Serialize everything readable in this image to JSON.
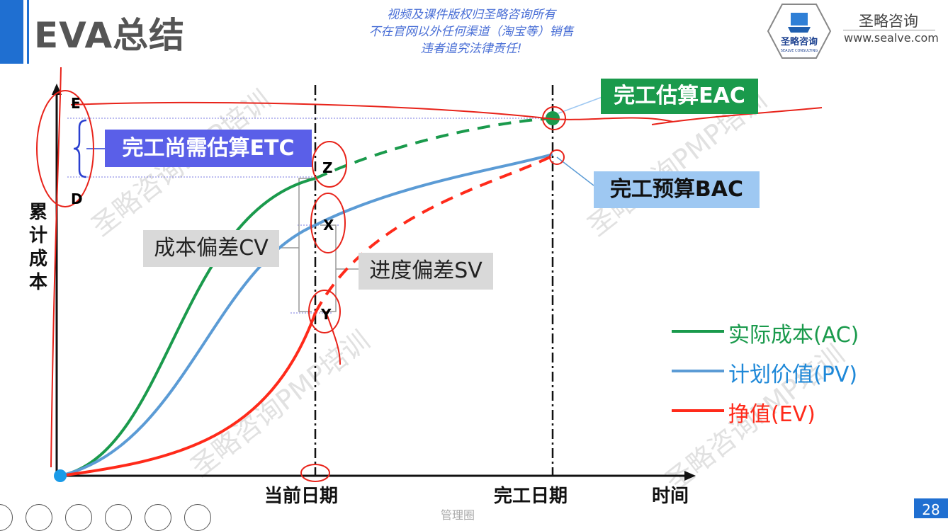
{
  "header": {
    "title": "EVA总结",
    "notice_lines": [
      "视频及课件版权归圣略咨询所有",
      "不在官网以外任何渠道（淘宝等）销售",
      "违者追究法律责任!"
    ],
    "brand_name": "圣略咨询",
    "brand_url": "www.sealve.com",
    "logo_text": "圣略咨询",
    "logo_sub": "SEALVE CONSULTING"
  },
  "chart_data": {
    "type": "line",
    "y_axis_label": "累计成本",
    "x_tick_labels": [
      "当前日期",
      "完工日期"
    ],
    "x_axis_label": "时间",
    "point_labels": {
      "E": "E",
      "D": "D",
      "Z": "Z",
      "X": "X",
      "Y": "Y"
    },
    "annotations": {
      "eac": "完工估算EAC",
      "etc": "完工尚需估算ETC",
      "bac": "完工预算BAC",
      "cv": "成本偏差CV",
      "sv": "进度偏差SV"
    },
    "legend": [
      {
        "name": "实际成本(AC)",
        "color": "#1a9a4c"
      },
      {
        "name": "计划价值(PV)",
        "color": "#5b9bd5"
      },
      {
        "name": "挣值(EV)",
        "color": "#ff2a1a"
      }
    ]
  },
  "watermark": "圣略咨询PMP培训",
  "footer": {
    "page_number": "28",
    "source_mark": "管理圈"
  },
  "slideshow_controls": [
    "previous-icon",
    "play-icon",
    "pen-icon",
    "zoom-icon",
    "more-icon",
    "screen-icon"
  ],
  "colors": {
    "accent": "#1f6fd1",
    "ac": "#1a9a4c",
    "pv": "#5b9bd5",
    "ev": "#ff2a1a",
    "annotation_red": "#e8231a"
  }
}
